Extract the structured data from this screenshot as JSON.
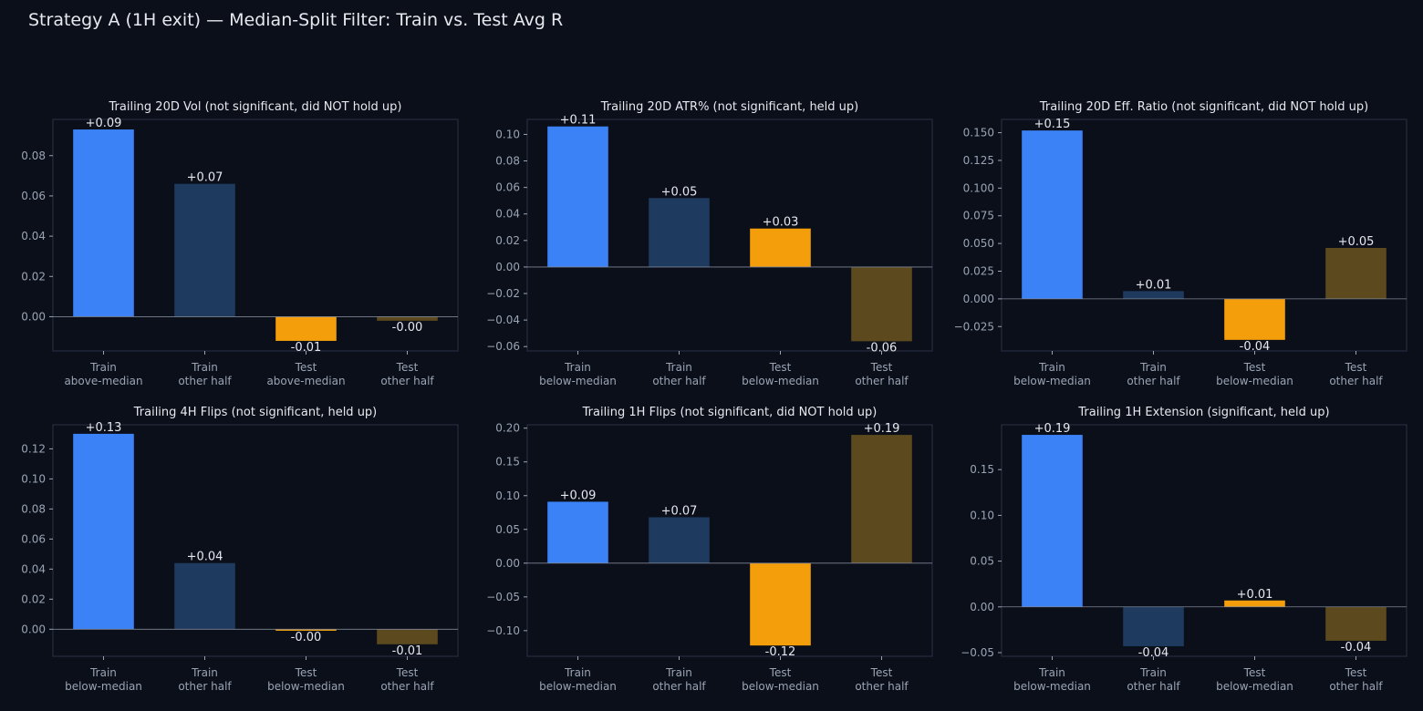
{
  "figure_title": "Strategy A (1H exit) — Median-Split Filter: Train vs. Test Avg R",
  "colors": {
    "background": "#0b0f19",
    "train_primary": "#3b82f6",
    "train_other": "#1e3a5f",
    "test_primary": "#f59e0b",
    "test_other": "#5c4a1e",
    "text": "#e6e8ee",
    "axis_text": "#9aa4b5",
    "frame": "#2a3245"
  },
  "chart_data": [
    {
      "type": "bar",
      "title": "Trailing 20D Vol (not significant, did NOT hold up)",
      "categories": [
        "Train\nabove-median",
        "Train\nother half",
        "Test\nabove-median",
        "Test\nother half"
      ],
      "values": [
        0.093,
        0.066,
        -0.012,
        -0.002
      ],
      "data_labels": [
        "+0.09",
        "+0.07",
        "-0.01",
        "-0.00"
      ],
      "ylim": [
        -0.017,
        0.098
      ],
      "yticks": [
        0.0,
        0.02,
        0.04,
        0.06,
        0.08
      ],
      "ytick_labels": [
        "0.00",
        "0.02",
        "0.04",
        "0.06",
        "0.08"
      ]
    },
    {
      "type": "bar",
      "title": "Trailing 20D ATR% (not significant, held up)",
      "categories": [
        "Train\nbelow-median",
        "Train\nother half",
        "Test\nbelow-median",
        "Test\nother half"
      ],
      "values": [
        0.106,
        0.052,
        0.029,
        -0.056
      ],
      "data_labels": [
        "+0.11",
        "+0.05",
        "+0.03",
        "-0.06"
      ],
      "ylim": [
        -0.0633,
        0.1113
      ],
      "yticks": [
        -0.06,
        -0.04,
        -0.02,
        0.0,
        0.02,
        0.04,
        0.06,
        0.08,
        0.1
      ],
      "ytick_labels": [
        "−0.06",
        "−0.04",
        "−0.02",
        "0.00",
        "0.02",
        "0.04",
        "0.06",
        "0.08",
        "0.10"
      ]
    },
    {
      "type": "bar",
      "title": "Trailing 20D Eff. Ratio (not significant, did NOT hold up)",
      "categories": [
        "Train\nbelow-median",
        "Train\nother half",
        "Test\nbelow-median",
        "Test\nother half"
      ],
      "values": [
        0.152,
        0.007,
        -0.037,
        0.046
      ],
      "data_labels": [
        "+0.15",
        "+0.01",
        "-0.04",
        "+0.05"
      ],
      "ylim": [
        -0.047,
        0.162
      ],
      "yticks": [
        -0.025,
        0.0,
        0.025,
        0.05,
        0.075,
        0.1,
        0.125,
        0.15
      ],
      "ytick_labels": [
        "−0.025",
        "0.000",
        "0.025",
        "0.050",
        "0.075",
        "0.100",
        "0.125",
        "0.150"
      ]
    },
    {
      "type": "bar",
      "title": "Trailing 4H Flips (not significant, held up)",
      "categories": [
        "Train\nbelow-median",
        "Train\nother half",
        "Test\nbelow-median",
        "Test\nother half"
      ],
      "values": [
        0.13,
        0.044,
        -0.001,
        -0.01
      ],
      "data_labels": [
        "+0.13",
        "+0.04",
        "-0.00",
        "-0.01"
      ],
      "ylim": [
        -0.018,
        0.136
      ],
      "yticks": [
        0.0,
        0.02,
        0.04,
        0.06,
        0.08,
        0.1,
        0.12
      ],
      "ytick_labels": [
        "0.00",
        "0.02",
        "0.04",
        "0.06",
        "0.08",
        "0.10",
        "0.12"
      ]
    },
    {
      "type": "bar",
      "title": "Trailing 1H Flips (not significant, did NOT hold up)",
      "categories": [
        "Train\nbelow-median",
        "Train\nother half",
        "Test\nbelow-median",
        "Test\nother half"
      ],
      "values": [
        0.091,
        0.068,
        -0.122,
        0.19
      ],
      "data_labels": [
        "+0.09",
        "+0.07",
        "-0.12",
        "+0.19"
      ],
      "ylim": [
        -0.138,
        0.205
      ],
      "yticks": [
        -0.1,
        -0.05,
        0.0,
        0.05,
        0.1,
        0.15,
        0.2
      ],
      "ytick_labels": [
        "−0.10",
        "−0.05",
        "0.00",
        "0.05",
        "0.10",
        "0.15",
        "0.20"
      ]
    },
    {
      "type": "bar",
      "title": "Trailing 1H Extension (significant, held up)",
      "categories": [
        "Train\nbelow-median",
        "Train\nother half",
        "Test\nbelow-median",
        "Test\nother half"
      ],
      "values": [
        0.188,
        -0.043,
        0.007,
        -0.037
      ],
      "data_labels": [
        "+0.19",
        "-0.04",
        "+0.01",
        "-0.04"
      ],
      "ylim": [
        -0.054,
        0.199
      ],
      "yticks": [
        -0.05,
        0.0,
        0.05,
        0.1,
        0.15
      ],
      "ytick_labels": [
        "−0.05",
        "0.00",
        "0.05",
        "0.10",
        "0.15"
      ]
    }
  ]
}
